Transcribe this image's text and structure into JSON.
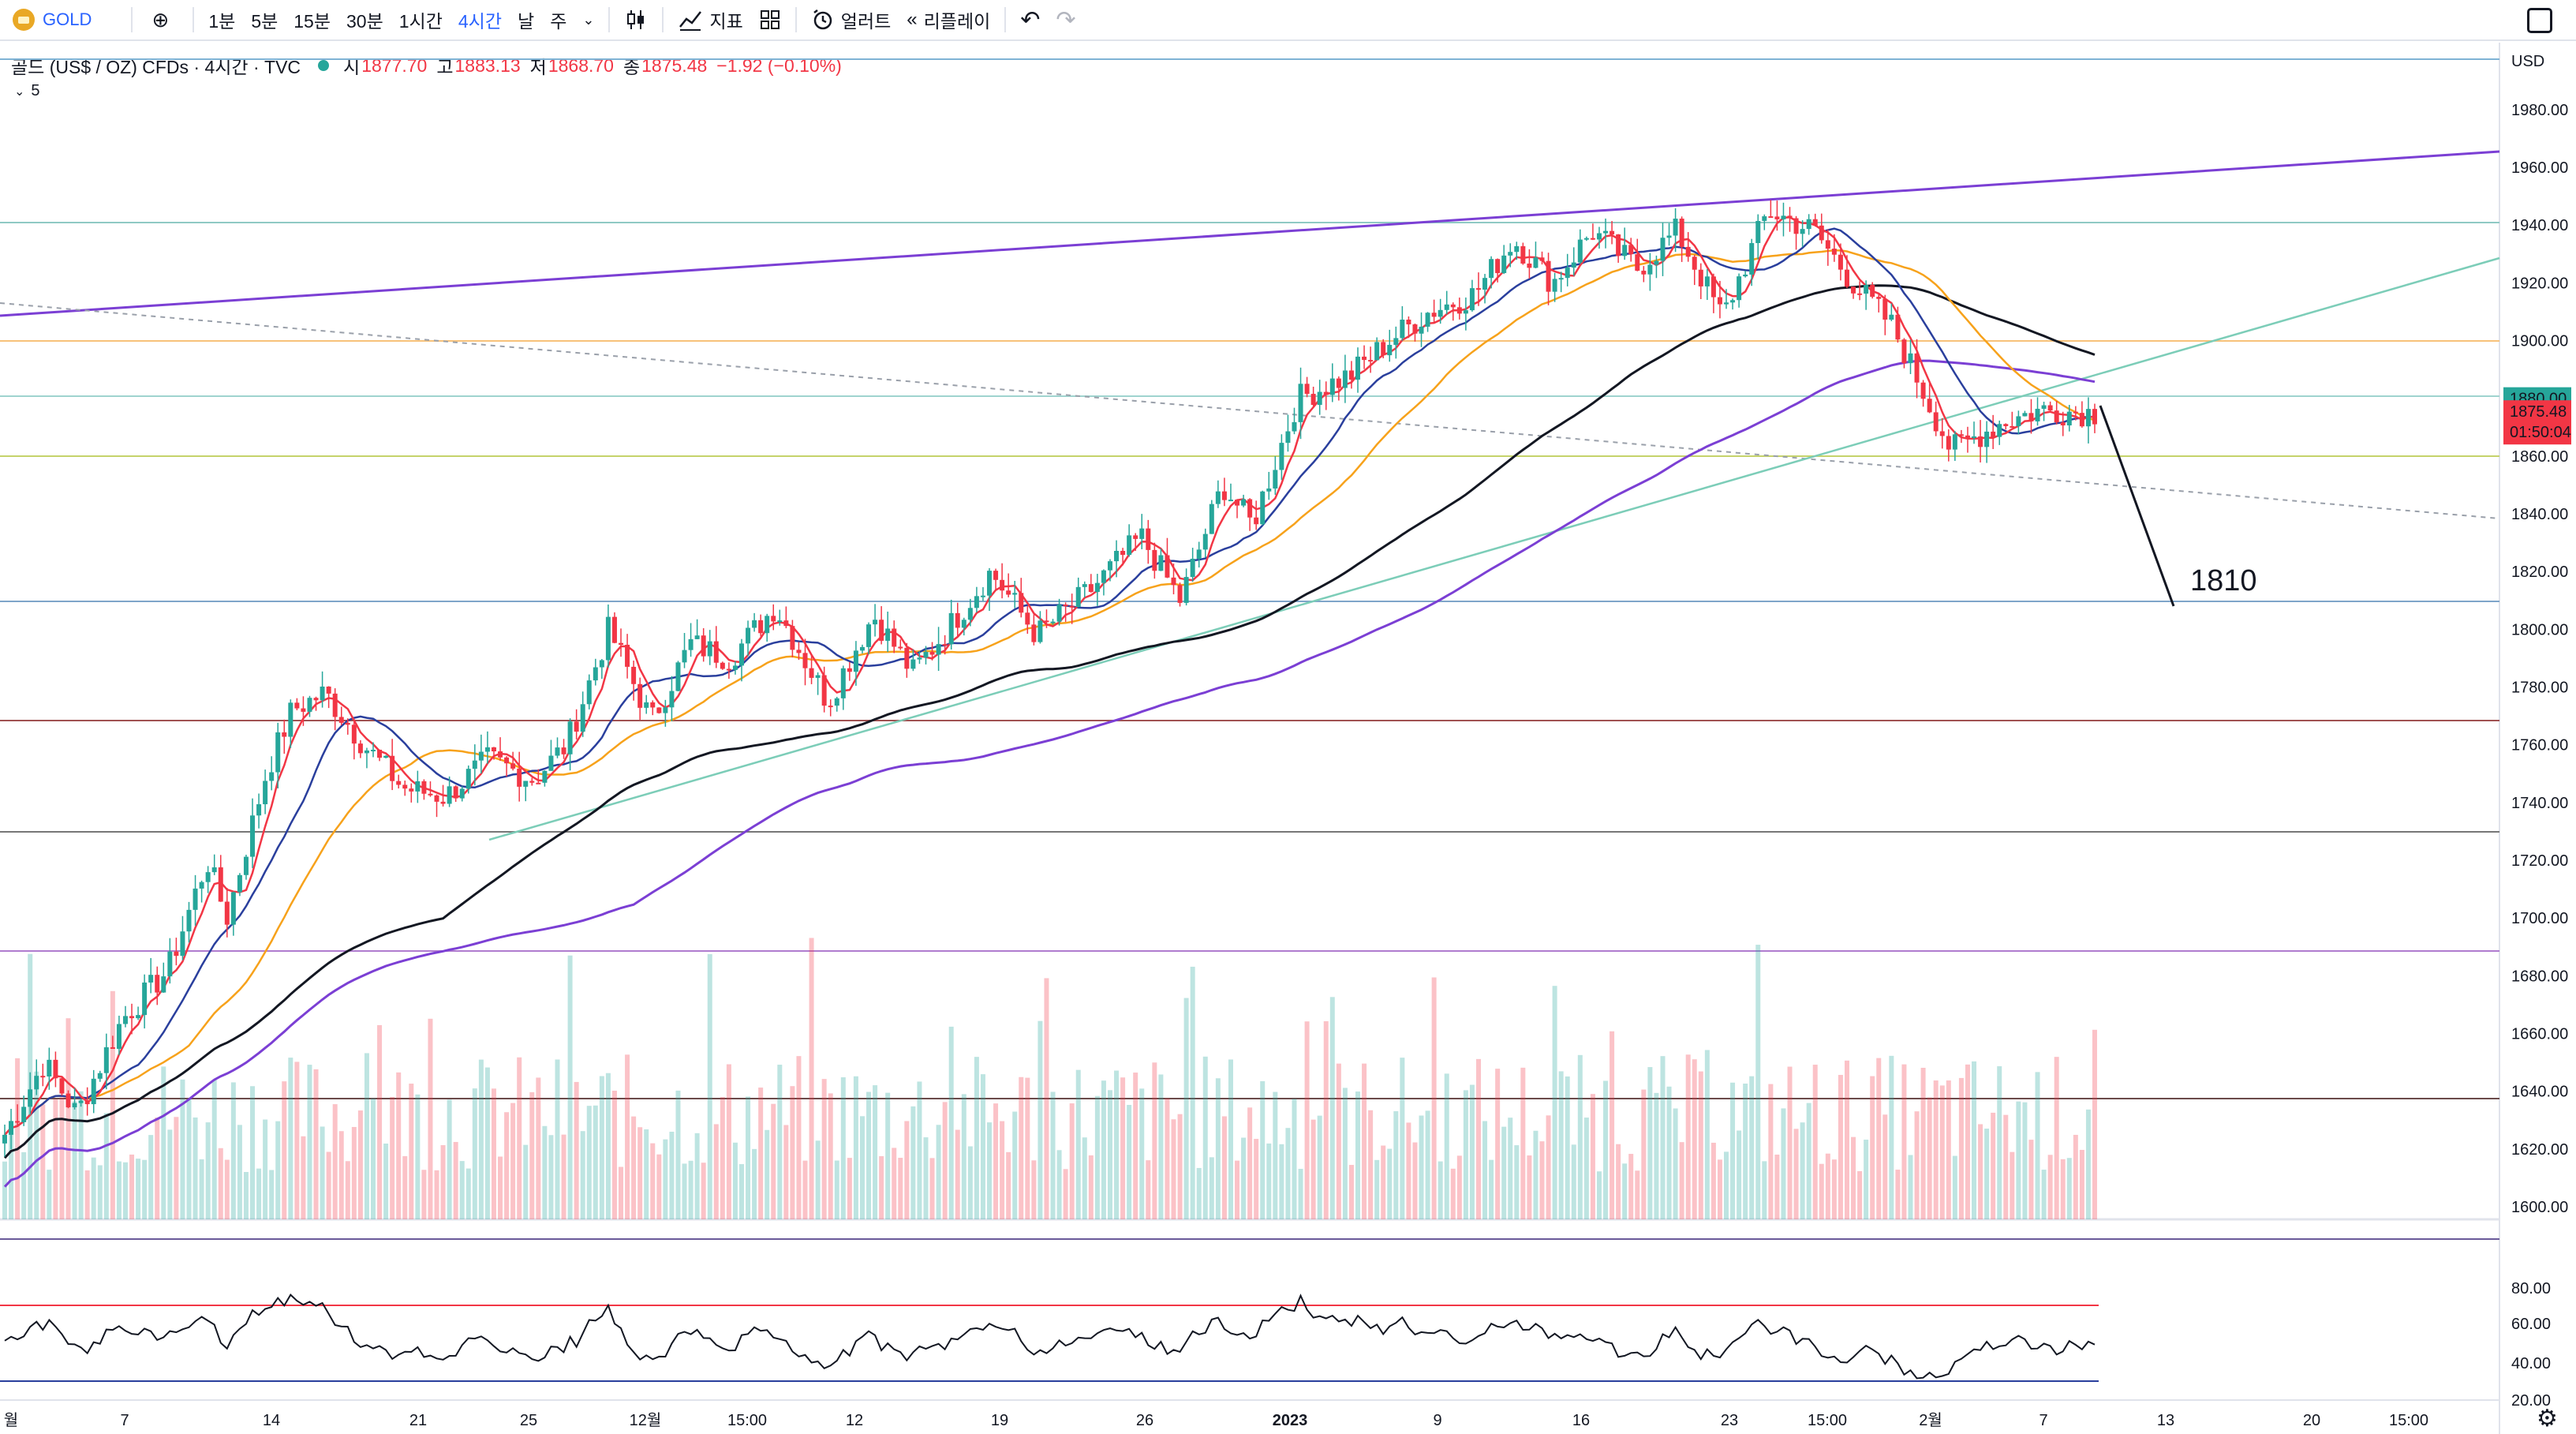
{
  "toolbar": {
    "symbol": "GOLD",
    "intervals": [
      "1분",
      "5분",
      "15분",
      "30분",
      "1시간",
      "4시간",
      "날",
      "주"
    ],
    "active_interval": "4시간",
    "indicators_label": "지표",
    "alerts_label": "얼러트",
    "replay_label": "리플레이"
  },
  "legend": {
    "title": "골드 (US$ / OZ) CFDs · 4시간 · TVC",
    "open_label": "시",
    "open_value": "1877.70",
    "high_label": "고",
    "high_value": "1883.13",
    "low_label": "저",
    "low_value": "1868.70",
    "close_label": "종",
    "close_value": "1875.48",
    "change": "−1.92 (−0.10%)",
    "collapse_count": "5"
  },
  "price_axis": {
    "currency": "USD",
    "labels": [
      "1980.00",
      "1960.00",
      "1940.00",
      "1920.00",
      "1900.00",
      "1880.00",
      "1860.00",
      "1840.00",
      "1820.00",
      "1800.00",
      "1780.00",
      "1760.00",
      "1740.00",
      "1720.00",
      "1700.00",
      "1680.00",
      "1660.00",
      "1640.00",
      "1620.00",
      "1600.00"
    ],
    "price_tag_level": "1880.00",
    "last_price": "1875.48",
    "countdown": "01:50:04"
  },
  "rsi_axis": {
    "labels": [
      "80.00",
      "60.00",
      "40.00",
      "20.00"
    ]
  },
  "time_axis": {
    "labels": [
      "월",
      "7",
      "14",
      "21",
      "25",
      "12월",
      "15:00",
      "12",
      "19",
      "26",
      "2023",
      "9",
      "16",
      "23",
      "15:00",
      "2월",
      "7",
      "13",
      "20",
      "15:00"
    ]
  },
  "annotation": {
    "target_text": "1810"
  },
  "colors": {
    "up": "#26a69a",
    "down": "#f23645",
    "ma_red": "#f23645",
    "ma_blue": "#2a3f9d",
    "ma_orange": "#f7a21b",
    "ma_black": "#131722",
    "ma_purple": "#7b3fd4",
    "accent": "#2962ff",
    "gold": "#e9a825"
  }
}
